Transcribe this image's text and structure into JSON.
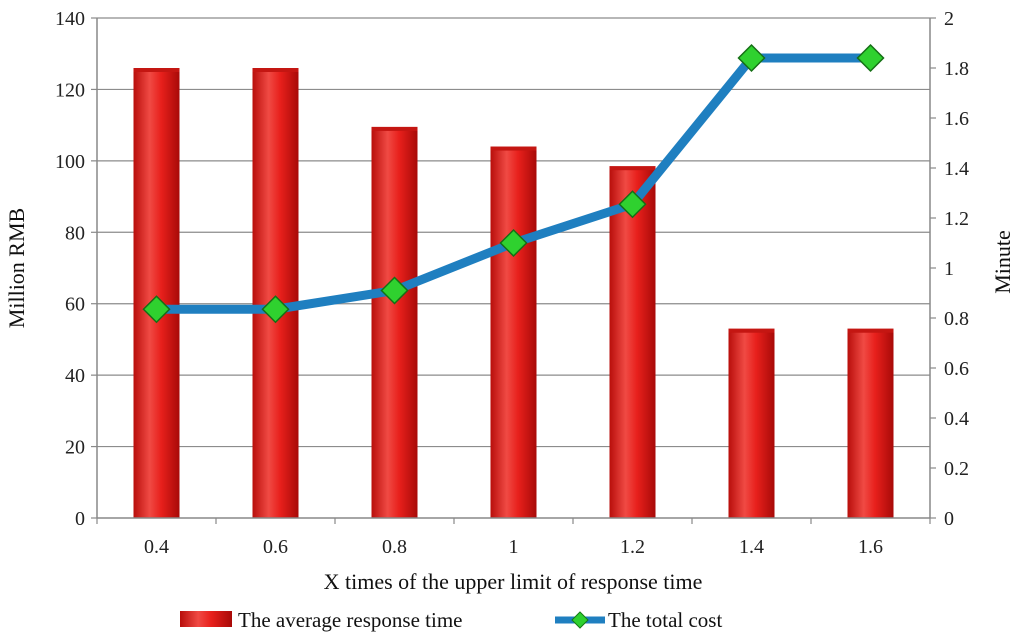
{
  "chart_data": {
    "type": "bar+line",
    "categories": [
      "0.4",
      "0.6",
      "0.8",
      "1",
      "1.2",
      "1.4",
      "1.6"
    ],
    "series": [
      {
        "name": "The average response time",
        "type": "bar",
        "axis": "left",
        "color": "#e8201c",
        "values": [
          126,
          126,
          109.5,
          104,
          98.5,
          53,
          53
        ]
      },
      {
        "name": "The total cost",
        "type": "line",
        "axis": "right",
        "color": "#1f7fc0",
        "marker_color": "#2fd12f",
        "values": [
          0.835,
          0.835,
          0.91,
          1.1,
          1.255,
          1.84,
          1.84
        ]
      }
    ],
    "xlabel": "X times of the upper limit of response time",
    "ylabel_left": "Million RMB",
    "ylabel_right": "Minute",
    "ylim_left": [
      0,
      140
    ],
    "yticks_left": [
      "0",
      "20",
      "40",
      "60",
      "80",
      "100",
      "120",
      "140"
    ],
    "ylim_right": [
      0,
      2
    ],
    "yticks_right": [
      "0",
      "0.2",
      "0.4",
      "0.6",
      "0.8",
      "1",
      "1.2",
      "1.4",
      "1.6",
      "1.8",
      "2"
    ],
    "grid": true,
    "legend_position": "bottom"
  }
}
